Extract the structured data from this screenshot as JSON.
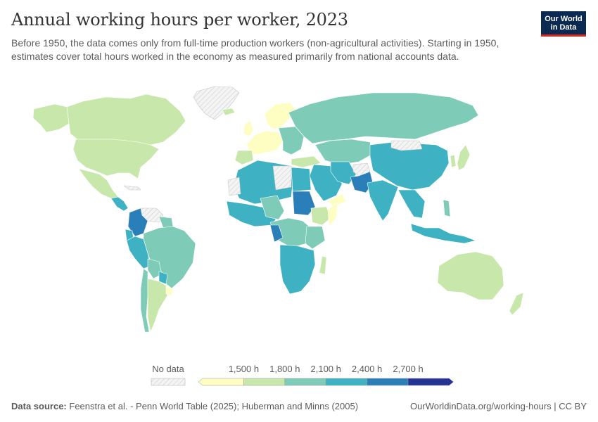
{
  "header": {
    "title": "Annual working hours per worker, 2023",
    "subtitle": "Before 1950, the data comes only from full-time production workers (non-agricultural activities). Starting in 1950, estimates cover total hours worked in the economy as measured primarily from national accounts data."
  },
  "logo": {
    "line1": "Our World",
    "line2": "in Data"
  },
  "legend": {
    "no_data_label": "No data",
    "bins": [
      {
        "color": "#fefec2"
      },
      {
        "label": "1,500 h",
        "color": "#c8e7aa"
      },
      {
        "label": "1,800 h",
        "color": "#7ecbb8"
      },
      {
        "label": "2,100 h",
        "color": "#3eb2c3"
      },
      {
        "label": "2,400 h",
        "color": "#2a7fb8"
      },
      {
        "label": "2,700 h",
        "color": "#253494"
      }
    ]
  },
  "footer": {
    "source_label": "Data source:",
    "source_text": "Feenstra et al. - Penn World Table (2025); Huberman and Minns (2005)",
    "url": "OurWorldinData.org/working-hours | CC BY"
  }
}
